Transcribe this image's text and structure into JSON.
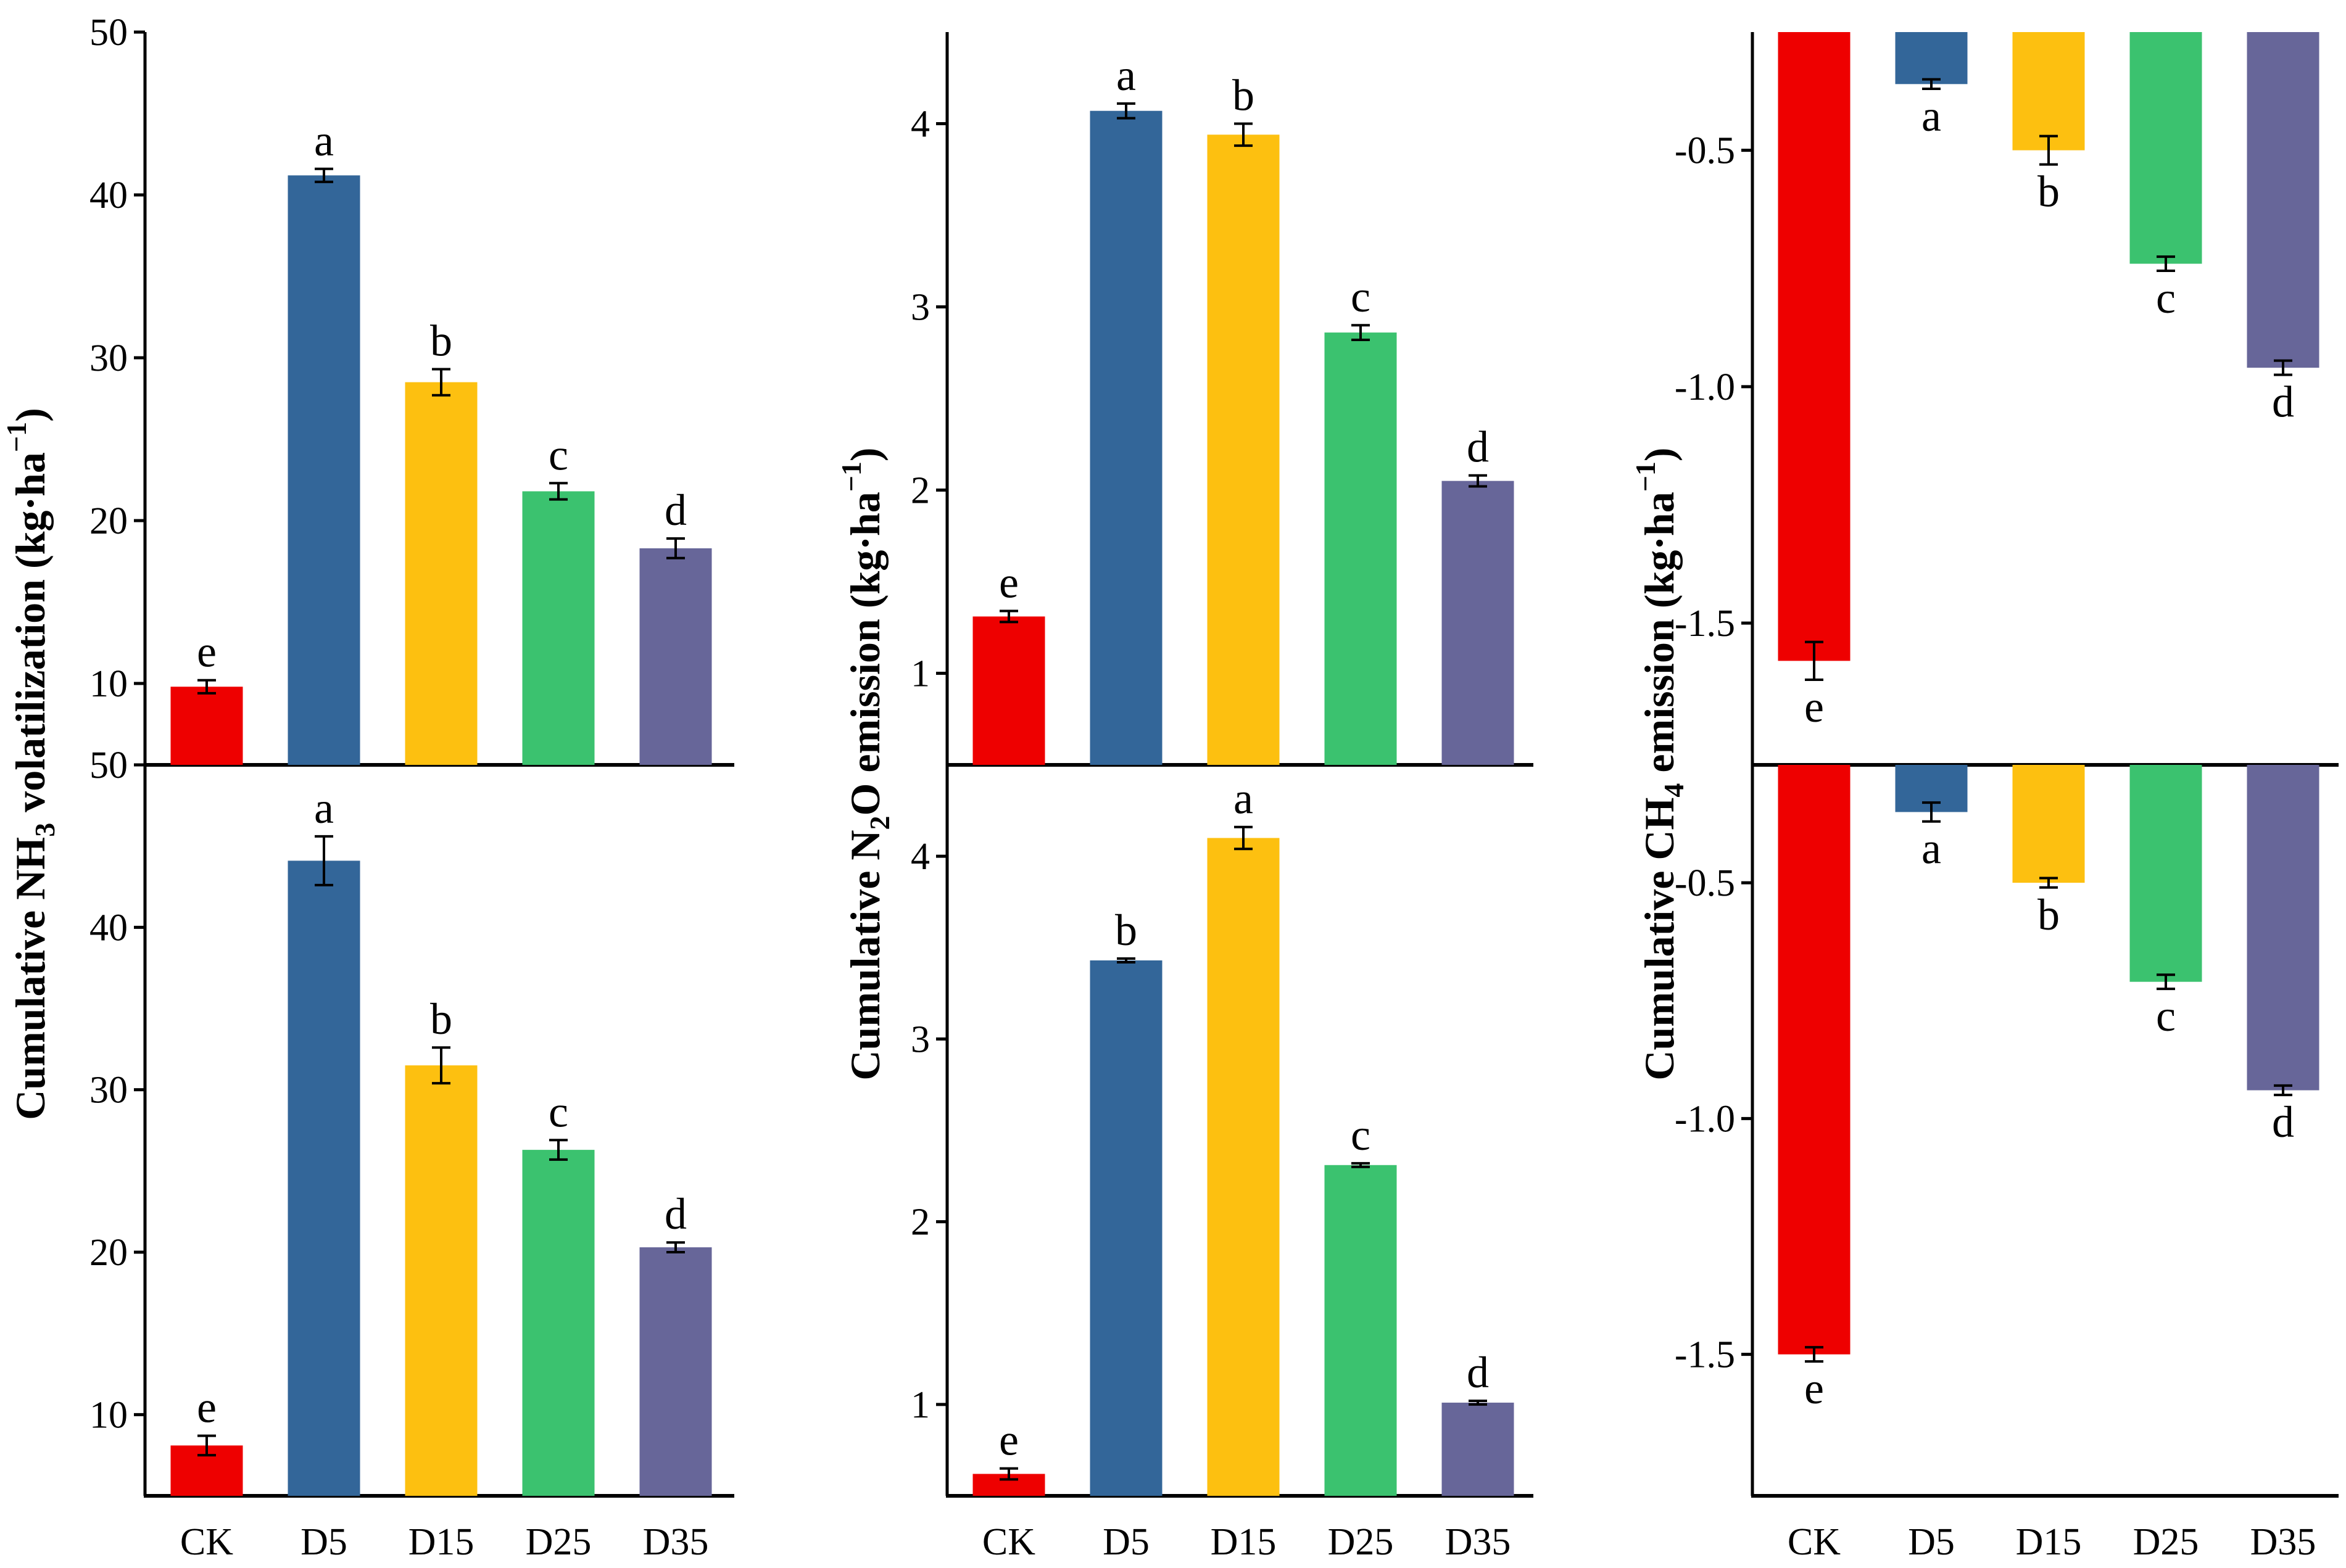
{
  "colors": {
    "CK": "#ee0000",
    "D5": "#336699",
    "D15": "#fdc010",
    "D25": "#3bc26f",
    "D35": "#676699"
  },
  "chart_data": [
    {
      "id": "nh3",
      "type": "bar",
      "ylabel_parts": [
        "Cumulative NH",
        "3",
        " volatilization (kg·ha",
        "−1",
        ")"
      ],
      "categories": [
        "CK",
        "D5",
        "D15",
        "D25",
        "D35"
      ],
      "panels": [
        {
          "id": "nh3-top",
          "ylim": [
            5,
            50
          ],
          "ticks": [
            10,
            20,
            30,
            40,
            50
          ],
          "tick_labels": [
            "10",
            "20",
            "30",
            "40",
            "50"
          ],
          "values": [
            9.8,
            41.2,
            28.5,
            21.8,
            18.3
          ],
          "errors": [
            0.4,
            0.4,
            0.8,
            0.5,
            0.6
          ],
          "letters": [
            "e",
            "a",
            "b",
            "c",
            "d"
          ]
        },
        {
          "id": "nh3-bottom",
          "ylim": [
            5,
            50
          ],
          "ticks": [
            10,
            20,
            30,
            40,
            50
          ],
          "tick_labels": [
            "10",
            "20",
            "30",
            "40",
            "50"
          ],
          "values": [
            8.1,
            44.1,
            31.5,
            26.3,
            20.3
          ],
          "errors": [
            0.6,
            1.5,
            1.1,
            0.6,
            0.3
          ],
          "letters": [
            "e",
            "a",
            "b",
            "c",
            "d"
          ]
        }
      ]
    },
    {
      "id": "n2o",
      "type": "bar",
      "ylabel_parts": [
        "Cumulative N",
        "2",
        "O emission (kg·ha",
        "−1",
        ")"
      ],
      "categories": [
        "CK",
        "D5",
        "D15",
        "D25",
        "D35"
      ],
      "panels": [
        {
          "id": "n2o-top",
          "ylim": [
            0.5,
            4.5
          ],
          "ticks": [
            1,
            2,
            3,
            4
          ],
          "tick_labels": [
            "1",
            "2",
            "3",
            "4"
          ],
          "values": [
            1.31,
            4.07,
            3.94,
            2.86,
            2.05
          ],
          "errors": [
            0.03,
            0.04,
            0.06,
            0.04,
            0.03
          ],
          "letters": [
            "e",
            "a",
            "b",
            "c",
            "d"
          ]
        },
        {
          "id": "n2o-bottom",
          "ylim": [
            0.5,
            4.5
          ],
          "ticks": [
            1,
            2,
            3,
            4
          ],
          "tick_labels": [
            "1",
            "2",
            "3",
            "4"
          ],
          "values": [
            0.62,
            3.43,
            4.1,
            2.31,
            1.01
          ],
          "errors": [
            0.03,
            0.01,
            0.06,
            0.01,
            0.01
          ],
          "letters": [
            "e",
            "b",
            "a",
            "c",
            "d"
          ]
        }
      ]
    },
    {
      "id": "ch4",
      "type": "bar",
      "ylabel_parts": [
        "Cumulative CH",
        "4",
        " emission (kg·ha",
        "−1",
        ")"
      ],
      "categories": [
        "CK",
        "D5",
        "D15",
        "D25",
        "D35"
      ],
      "panels": [
        {
          "id": "ch4-top",
          "ylim": [
            -1.8,
            -0.25
          ],
          "ticks": [
            -0.5,
            -1.0,
            -1.5
          ],
          "tick_labels": [
            "-0.5",
            "-1.0",
            "-1.5"
          ],
          "values": [
            -1.58,
            -0.36,
            -0.5,
            -0.74,
            -0.96
          ],
          "errors": [
            0.04,
            0.01,
            0.03,
            0.015,
            0.015
          ],
          "letters": [
            "e",
            "a",
            "b",
            "c",
            "d"
          ]
        },
        {
          "id": "ch4-bottom",
          "ylim": [
            -1.8,
            -0.25
          ],
          "ticks": [
            -0.5,
            -1.0,
            -1.5
          ],
          "tick_labels": [
            "-0.5",
            "-1.0",
            "-1.5"
          ],
          "values": [
            -1.5,
            -0.35,
            -0.5,
            -0.71,
            -0.94
          ],
          "errors": [
            0.015,
            0.02,
            0.01,
            0.015,
            0.01
          ],
          "letters": [
            "e",
            "a",
            "b",
            "c",
            "d"
          ]
        }
      ]
    }
  ]
}
